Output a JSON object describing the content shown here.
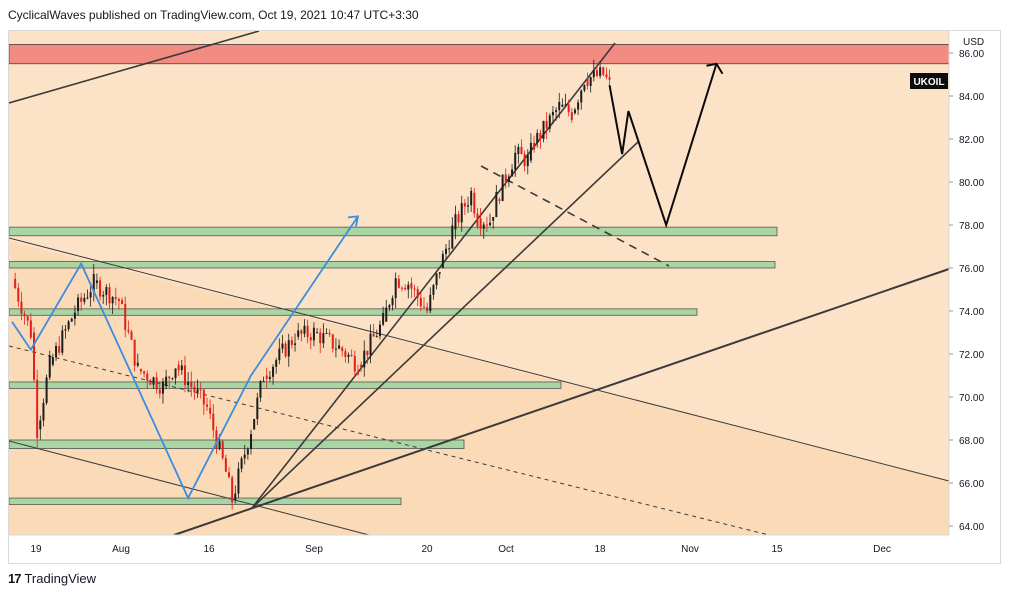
{
  "header": {
    "text": "CyclicalWaves published on TradingView.com, Oct 19, 2021 10:47 UTC+3:30"
  },
  "footer": {
    "brand": "TradingView"
  },
  "colors": {
    "background": "#fce2c6",
    "resistance_zone": "#f28b82",
    "support_zone": "#a8d5a2",
    "up_candle": "#1d1d1d",
    "down_candle": "#e0201b",
    "line": "#3b3b3b",
    "projection_blue": "#3c8de0"
  },
  "chart_data": {
    "type": "candlestick",
    "symbol": "UKOIL",
    "currency": "USD",
    "x_ticks": [
      "19",
      "Aug",
      "16",
      "Sep",
      "20",
      "Oct",
      "18",
      "Nov",
      "15",
      "Dec"
    ],
    "y_ticks": [
      "86.00",
      "84.00",
      "82.00",
      "80.00",
      "78.00",
      "76.00",
      "74.00",
      "72.00",
      "70.00",
      "68.00",
      "66.00",
      "64.00"
    ],
    "ylim": [
      63.5,
      86.6
    ],
    "close_path": [
      {
        "date": "2021-07-16",
        "close": 75.5
      },
      {
        "date": "2021-07-19",
        "close": 73.0
      },
      {
        "date": "2021-07-20",
        "close": 68.5
      },
      {
        "date": "2021-07-22",
        "close": 71.5
      },
      {
        "date": "2021-07-26",
        "close": 74.0
      },
      {
        "date": "2021-07-29",
        "close": 75.3
      },
      {
        "date": "2021-08-02",
        "close": 74.5
      },
      {
        "date": "2021-08-05",
        "close": 71.3
      },
      {
        "date": "2021-08-09",
        "close": 70.5
      },
      {
        "date": "2021-08-11",
        "close": 71.5
      },
      {
        "date": "2021-08-16",
        "close": 69.5
      },
      {
        "date": "2021-08-19",
        "close": 66.5
      },
      {
        "date": "2021-08-20",
        "close": 65.2
      },
      {
        "date": "2021-08-23",
        "close": 68.5
      },
      {
        "date": "2021-08-25",
        "close": 71.0
      },
      {
        "date": "2021-08-30",
        "close": 72.8
      },
      {
        "date": "2021-09-02",
        "close": 73.0
      },
      {
        "date": "2021-09-06",
        "close": 72.3
      },
      {
        "date": "2021-09-09",
        "close": 71.5
      },
      {
        "date": "2021-09-13",
        "close": 73.5
      },
      {
        "date": "2021-09-15",
        "close": 75.5
      },
      {
        "date": "2021-09-17",
        "close": 75.3
      },
      {
        "date": "2021-09-20",
        "close": 74.0
      },
      {
        "date": "2021-09-22",
        "close": 76.0
      },
      {
        "date": "2021-09-24",
        "close": 77.8
      },
      {
        "date": "2021-09-27",
        "close": 79.5
      },
      {
        "date": "2021-09-28",
        "close": 78.3
      },
      {
        "date": "2021-09-30",
        "close": 78.2
      },
      {
        "date": "2021-10-01",
        "close": 79.2
      },
      {
        "date": "2021-10-04",
        "close": 81.3
      },
      {
        "date": "2021-10-06",
        "close": 81.0
      },
      {
        "date": "2021-10-07",
        "close": 81.8
      },
      {
        "date": "2021-10-11",
        "close": 83.5
      },
      {
        "date": "2021-10-13",
        "close": 83.2
      },
      {
        "date": "2021-10-15",
        "close": 84.8
      },
      {
        "date": "2021-10-18",
        "close": 85.0
      },
      {
        "date": "2021-10-19",
        "close": 84.5
      }
    ],
    "zones": {
      "resistance": [
        [
          85.5,
          86.4
        ]
      ],
      "support": [
        [
          77.5,
          77.9
        ],
        [
          76.0,
          76.3
        ],
        [
          73.8,
          74.1
        ],
        [
          70.4,
          70.7
        ],
        [
          67.6,
          68.0
        ],
        [
          65.0,
          65.3
        ]
      ]
    },
    "projection_black": [
      {
        "date": "2021-10-19",
        "price": 84.5
      },
      {
        "date": "2021-10-21",
        "price": 81.3
      },
      {
        "date": "2021-10-22",
        "price": 83.3
      },
      {
        "date": "2021-10-28",
        "price": 78.0
      },
      {
        "date": "2021-11-05",
        "price": 85.5
      }
    ],
    "projection_blue": [
      {
        "date": "2021-07-16",
        "price": 73.5
      },
      {
        "date": "2021-07-19",
        "price": 72.2
      },
      {
        "date": "2021-07-27",
        "price": 76.2
      },
      {
        "date": "2021-08-13",
        "price": 65.3
      },
      {
        "date": "2021-08-23",
        "price": 71.0
      },
      {
        "date": "2021-09-09",
        "price": 78.4
      }
    ]
  }
}
